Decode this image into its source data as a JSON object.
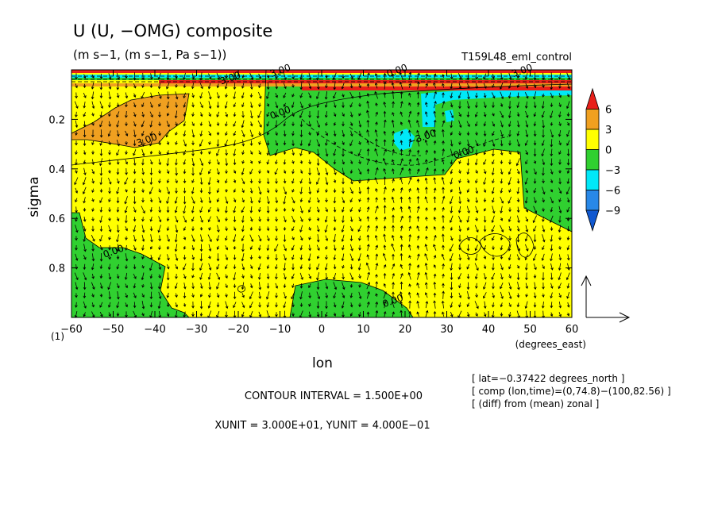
{
  "chart_data": {
    "type": "heatmap",
    "title": "U (U, −OMG) composite",
    "units": "(m s−1, (m s−1, Pa s−1))",
    "run_label": "T159L48_eml_control",
    "xlabel": "lon",
    "xunit_label": "(degrees_east)",
    "ylabel": "sigma",
    "frame_number": "(1)",
    "xlim": [
      -60,
      60
    ],
    "ylim": [
      1.0,
      0.0
    ],
    "x_ticks": [
      -60,
      -50,
      -40,
      -30,
      -20,
      -10,
      0,
      10,
      20,
      30,
      40,
      50,
      60
    ],
    "y_ticks": [
      0.2,
      0.4,
      0.6,
      0.8
    ],
    "colorbar": {
      "labels": [
        "6",
        "3",
        "0",
        "−3",
        "−6",
        "−9"
      ],
      "levels": [
        6,
        3,
        0,
        -3,
        -6,
        -9
      ],
      "colors": [
        "#e8201a",
        "#f0a020",
        "#ffff00",
        "#30d030",
        "#00e8f8",
        "#2888e8",
        "#1058d0"
      ]
    },
    "contour_labels": [
      {
        "text": "3.00",
        "lon": -42,
        "sigma": 0.28
      },
      {
        "text": "0.00",
        "lon": -10,
        "sigma": 0.17
      },
      {
        "text": "−3.00",
        "lon": 24,
        "sigma": 0.27
      },
      {
        "text": "0.00",
        "lon": 34,
        "sigma": 0.33
      },
      {
        "text": "0.00",
        "lon": -50,
        "sigma": 0.73
      },
      {
        "text": "0.00",
        "lon": 17,
        "sigma": 0.93
      },
      {
        "text": "3.00",
        "lon": -22,
        "sigma": 0.03
      },
      {
        "text": "3.00",
        "lon": -10,
        "sigma": 0.0
      },
      {
        "text": "0.00",
        "lon": 18,
        "sigma": 0.0
      },
      {
        "text": "3.00",
        "lon": 48,
        "sigma": 0.0
      }
    ],
    "regions": [
      {
        "name": "orange",
        "value_range": [
          3,
          6
        ]
      },
      {
        "name": "yellow",
        "value_range": [
          0,
          3
        ]
      },
      {
        "name": "green",
        "value_range": [
          -3,
          0
        ]
      },
      {
        "name": "cyan",
        "value_range": [
          -6,
          -3
        ]
      },
      {
        "name": "red-bands",
        "value_range": [
          6,
          9
        ]
      }
    ],
    "vector_field": "(U, −OMG)"
  },
  "annotations": {
    "contour_interval": "CONTOUR INTERVAL = 1.500E+00",
    "xy_units": "XUNIT = 3.000E+01, YUNIT = 4.000E−01",
    "info_lines": [
      "[ lat=−0.37422 degrees_north ]",
      "[ comp (lon,time)=(0,74.8)−(100,82.56) ]",
      "[ (diff) from (mean) zonal ]"
    ]
  }
}
